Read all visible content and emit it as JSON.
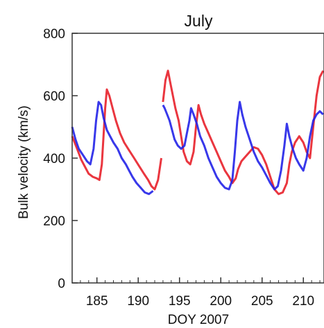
{
  "chart_data": {
    "type": "line",
    "title": "July",
    "xlabel": "DOY 2007",
    "ylabel": "Bulk velocity (km/s)",
    "xlim": [
      182,
      212.5
    ],
    "ylim": [
      0,
      800
    ],
    "xticks": [
      185,
      190,
      195,
      200,
      205,
      210
    ],
    "yticks": [
      0,
      200,
      400,
      600,
      800
    ],
    "grid": false,
    "series": [
      {
        "color": "#e8202a",
        "segments": [
          [
            [
              182.0,
              470
            ],
            [
              182.6,
              430
            ],
            [
              183.1,
              395
            ],
            [
              183.6,
              370
            ],
            [
              184.0,
              350
            ],
            [
              184.5,
              340
            ],
            [
              185.0,
              335
            ],
            [
              185.3,
              330
            ],
            [
              185.6,
              380
            ],
            [
              185.8,
              470
            ],
            [
              186.0,
              560
            ],
            [
              186.2,
              620
            ],
            [
              186.5,
              600
            ],
            [
              186.9,
              560
            ],
            [
              187.3,
              520
            ],
            [
              187.8,
              480
            ],
            [
              188.3,
              450
            ],
            [
              188.9,
              425
            ],
            [
              189.5,
              400
            ],
            [
              190.1,
              375
            ],
            [
              190.7,
              350
            ],
            [
              191.2,
              330
            ],
            [
              191.6,
              310
            ],
            [
              192.0,
              300
            ],
            [
              192.4,
              330
            ],
            [
              192.8,
              400
            ]
          ],
          [
            [
              193.0,
              580
            ],
            [
              193.3,
              650
            ],
            [
              193.6,
              680
            ],
            [
              193.9,
              640
            ],
            [
              194.2,
              600
            ],
            [
              194.5,
              560
            ],
            [
              194.9,
              520
            ],
            [
              195.2,
              470
            ],
            [
              195.5,
              420
            ],
            [
              195.9,
              390
            ],
            [
              196.3,
              380
            ],
            [
              196.7,
              420
            ],
            [
              197.0,
              500
            ],
            [
              197.3,
              570
            ],
            [
              197.6,
              540
            ],
            [
              198.0,
              510
            ],
            [
              198.5,
              480
            ],
            [
              199.0,
              450
            ],
            [
              199.5,
              420
            ],
            [
              200.0,
              390
            ],
            [
              200.5,
              360
            ],
            [
              201.0,
              340
            ],
            [
              201.4,
              320
            ],
            [
              201.8,
              335
            ],
            [
              202.1,
              365
            ],
            [
              202.5,
              390
            ],
            [
              203.0,
              405
            ],
            [
              203.5,
              420
            ],
            [
              204.0,
              435
            ],
            [
              204.5,
              430
            ],
            [
              205.0,
              410
            ],
            [
              205.5,
              380
            ],
            [
              206.0,
              340
            ],
            [
              206.5,
              300
            ],
            [
              207.0,
              285
            ],
            [
              207.5,
              290
            ],
            [
              208.0,
              320
            ],
            [
              208.3,
              380
            ],
            [
              208.6,
              420
            ],
            [
              209.0,
              450
            ],
            [
              209.5,
              470
            ],
            [
              210.0,
              450
            ],
            [
              210.4,
              420
            ],
            [
              210.8,
              400
            ],
            [
              211.2,
              500
            ],
            [
              211.6,
              600
            ],
            [
              212.0,
              660
            ],
            [
              212.4,
              680
            ]
          ]
        ]
      },
      {
        "color": "#2222e8",
        "segments": [
          [
            [
              182.0,
              500
            ],
            [
              182.4,
              460
            ],
            [
              182.8,
              430
            ],
            [
              183.3,
              410
            ],
            [
              183.8,
              390
            ],
            [
              184.2,
              380
            ],
            [
              184.6,
              430
            ],
            [
              184.9,
              520
            ],
            [
              185.2,
              580
            ],
            [
              185.5,
              570
            ],
            [
              185.8,
              530
            ],
            [
              186.2,
              490
            ],
            [
              186.6,
              470
            ],
            [
              187.0,
              450
            ],
            [
              187.5,
              430
            ],
            [
              188.0,
              400
            ],
            [
              188.5,
              380
            ],
            [
              188.9,
              360
            ],
            [
              189.3,
              340
            ],
            [
              189.8,
              320
            ],
            [
              190.3,
              305
            ],
            [
              190.8,
              290
            ],
            [
              191.3,
              285
            ],
            [
              191.8,
              295
            ]
          ],
          [
            [
              193.0,
              570
            ],
            [
              193.2,
              560
            ],
            [
              193.5,
              540
            ],
            [
              193.8,
              520
            ],
            [
              194.1,
              490
            ],
            [
              194.4,
              460
            ],
            [
              194.8,
              440
            ],
            [
              195.2,
              430
            ],
            [
              195.6,
              440
            ],
            [
              195.9,
              480
            ],
            [
              196.2,
              520
            ],
            [
              196.4,
              560
            ],
            [
              196.7,
              540
            ],
            [
              197.1,
              510
            ],
            [
              197.5,
              470
            ],
            [
              198.0,
              440
            ],
            [
              198.5,
              400
            ],
            [
              199.0,
              370
            ],
            [
              199.5,
              340
            ],
            [
              200.0,
              320
            ],
            [
              200.5,
              305
            ],
            [
              201.0,
              300
            ],
            [
              201.4,
              330
            ],
            [
              201.7,
              420
            ],
            [
              202.0,
              520
            ],
            [
              202.3,
              580
            ],
            [
              202.6,
              540
            ],
            [
              203.0,
              500
            ],
            [
              203.5,
              460
            ],
            [
              204.0,
              420
            ],
            [
              204.5,
              390
            ],
            [
              205.0,
              370
            ],
            [
              205.5,
              345
            ],
            [
              206.0,
              320
            ],
            [
              206.5,
              300
            ],
            [
              206.9,
              310
            ],
            [
              207.3,
              360
            ],
            [
              207.7,
              440
            ],
            [
              208.0,
              510
            ],
            [
              208.3,
              470
            ],
            [
              208.7,
              430
            ],
            [
              209.1,
              400
            ],
            [
              209.5,
              380
            ],
            [
              210.0,
              360
            ],
            [
              210.4,
              400
            ],
            [
              210.8,
              470
            ],
            [
              211.2,
              520
            ],
            [
              211.6,
              540
            ],
            [
              212.0,
              550
            ],
            [
              212.4,
              540
            ]
          ]
        ]
      }
    ]
  }
}
